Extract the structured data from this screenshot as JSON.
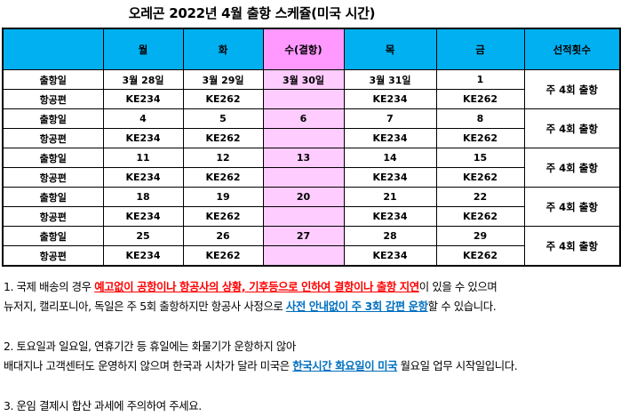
{
  "title": "오레곤 2022년 4월 출항 스케쥴(미국 시간)",
  "headers": [
    "",
    "월",
    "화",
    "수(결항)",
    "목",
    "금",
    "선적횟수"
  ],
  "weeks": [
    {
      "dates": [
        "출항일",
        "3월 28일",
        "3월 29일",
        "3월 30일",
        "3월 31일",
        "1"
      ],
      "flights": [
        "항공편",
        "KE234",
        "KE262",
        "",
        "KE234",
        "KE262"
      ],
      "count": "주 4회 출항"
    },
    {
      "dates": [
        "출항일",
        "4",
        "5",
        "6",
        "7",
        "8"
      ],
      "flights": [
        "항공편",
        "KE234",
        "KE262",
        "",
        "KE234",
        "KE262"
      ],
      "count": "주 4회 출항"
    },
    {
      "dates": [
        "출항일",
        "11",
        "12",
        "13",
        "14",
        "15"
      ],
      "flights": [
        "항공편",
        "KE234",
        "KE262",
        "",
        "KE234",
        "KE262"
      ],
      "count": "주 4회 출항"
    },
    {
      "dates": [
        "출항일",
        "18",
        "19",
        "20",
        "21",
        "22"
      ],
      "flights": [
        "항공편",
        "KE234",
        "KE262",
        "",
        "KE234",
        "KE262"
      ],
      "count": "주 4회 출항"
    },
    {
      "dates": [
        "출항일",
        "25",
        "26",
        "27",
        "28",
        "29"
      ],
      "flights": [
        "항공편",
        "KE234",
        "KE262",
        "",
        "KE234",
        "KE262"
      ],
      "count": "주 4회 출항"
    }
  ],
  "notes": {
    "n1_pre": "1. 국제 배송의 경우 ",
    "n1_red": "예고없이 공항이나 항공사의 상황, 기후등으로 인하여 결항이나 출항 지연",
    "n1_post": "이 있을 수 있으며",
    "n1b_pre": "뉴저지, 캘리포니아, 독일은 주 5회 출항하지만 항공사 사정으로 ",
    "n1b_blue": "사전 안내없이 주 3회 감편 운항",
    "n1b_post": "할 수 있습니다.",
    "n2": "2. 토요일과 일요일, 연휴기간 등 휴일에는 화물기가 운항하지 않아",
    "n2b_pre": "배대지나 고객센터도 운영하지 않으며 한국과 시차가 달라 미국은 ",
    "n2b_blue": "한국시간 화요일이 미국",
    "n2b_post": " 월요일 업무 시작일입니다.",
    "n3": "3. 운임 결제시 합산 과세에 주의하여 주세요."
  },
  "colors": {
    "header": "#00b0f0",
    "wednesday_header": "#ff99ff",
    "wednesday_cell": "#ffccff",
    "warning": "#ff0000",
    "info": "#0070c0"
  }
}
